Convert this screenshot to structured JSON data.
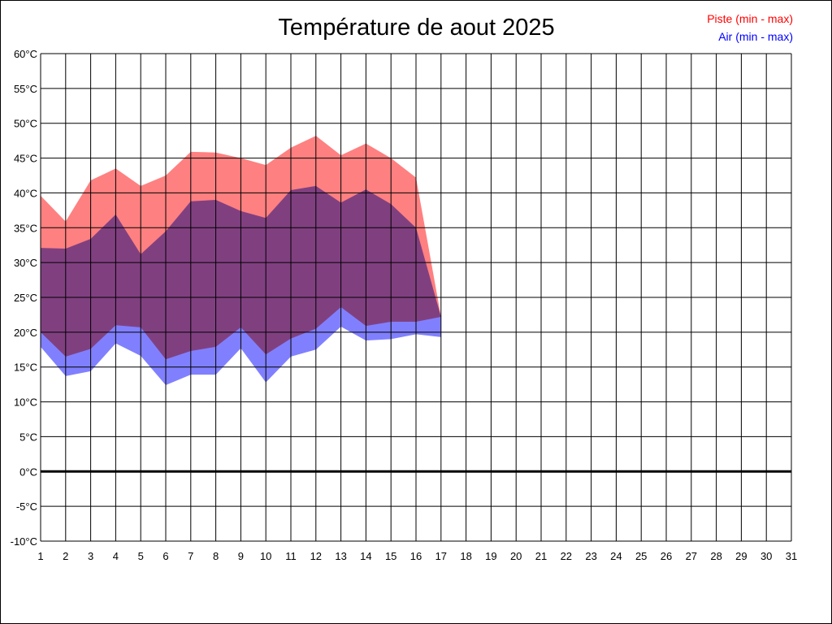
{
  "chart_data": {
    "type": "area",
    "title": "Température de aout 2025",
    "xlabel": "",
    "ylabel": "",
    "x": [
      1,
      2,
      3,
      4,
      5,
      6,
      7,
      8,
      9,
      10,
      11,
      12,
      13,
      14,
      15,
      16,
      17,
      18,
      19,
      20,
      21,
      22,
      23,
      24,
      25,
      26,
      27,
      28,
      29,
      30,
      31
    ],
    "xlim": [
      1,
      31
    ],
    "ylim": [
      -10,
      60
    ],
    "y_ticks": [
      60,
      55,
      50,
      45,
      40,
      35,
      30,
      25,
      20,
      15,
      10,
      5,
      0,
      -5,
      -10
    ],
    "y_tick_suffix": "°C",
    "grid": true,
    "zero_line": true,
    "legend_position": "top-right",
    "series": [
      {
        "name": "Piste (min - max)",
        "color": "#ff0000",
        "fill": "#ff8080",
        "days": [
          1,
          2,
          3,
          4,
          5,
          6,
          7,
          8,
          9,
          10,
          11,
          12,
          13,
          14,
          15,
          16,
          17
        ],
        "min": [
          20.0,
          16.5,
          17.6,
          21.0,
          20.7,
          16.1,
          17.3,
          17.9,
          20.7,
          16.8,
          19.1,
          20.5,
          23.6,
          20.9,
          21.5,
          21.5,
          22.2
        ],
        "max": [
          39.6,
          35.9,
          41.8,
          43.5,
          41.0,
          42.5,
          45.9,
          45.8,
          45.0,
          44.0,
          46.5,
          48.2,
          45.4,
          47.1,
          45.0,
          42.2,
          22.2
        ]
      },
      {
        "name": "Air (min - max)",
        "color": "#0000ff",
        "fill": "#8080ff",
        "days": [
          1,
          2,
          3,
          4,
          5,
          6,
          7,
          8,
          9,
          10,
          11,
          12,
          13,
          14,
          15,
          16,
          17
        ],
        "min": [
          17.9,
          13.7,
          14.4,
          18.4,
          16.6,
          12.4,
          13.9,
          13.9,
          17.7,
          12.8,
          16.5,
          17.5,
          20.8,
          18.8,
          19.0,
          19.7,
          19.3
        ],
        "max": [
          32.1,
          32.0,
          33.4,
          36.9,
          31.2,
          34.5,
          38.8,
          39.0,
          37.4,
          36.4,
          40.4,
          41.0,
          38.6,
          40.5,
          38.4,
          35.0,
          22.2
        ]
      }
    ]
  }
}
